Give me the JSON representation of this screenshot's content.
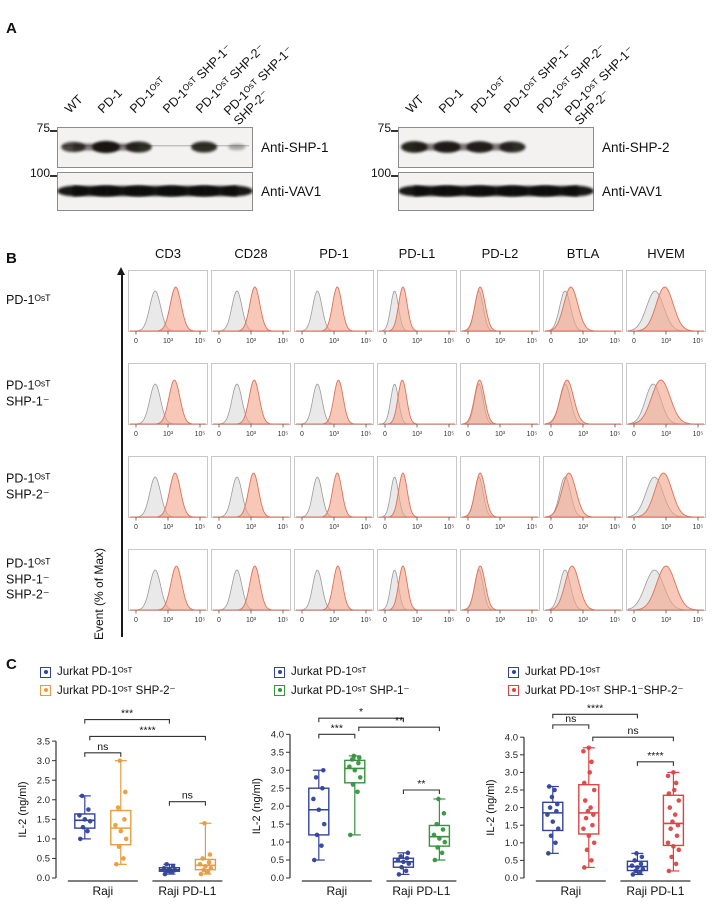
{
  "panelA": {
    "label": "A",
    "lane_labels": [
      "WT",
      "PD-1",
      "PD-1ᴼˢᵀ",
      "PD-1ᴼˢᵀ SHP-1⁻",
      "PD-1ᴼˢᵀ SHP-2⁻",
      "PD-1ᴼˢᵀ SHP-1⁻\nSHP-2⁻"
    ],
    "blots": [
      {
        "marker_top": "75",
        "marker_bottom": "100",
        "antibody_top": "Anti-SHP-1",
        "antibody_bottom": "Anti-VAV1",
        "smear": true,
        "bands_top": [
          0.7,
          1.0,
          0.85,
          0,
          0.85,
          0.1
        ],
        "bands_bottom": [
          1,
          1,
          1,
          1,
          1,
          1
        ]
      },
      {
        "marker_top": "75",
        "marker_bottom": "100",
        "antibody_top": "Anti-SHP-2",
        "antibody_bottom": "Anti-VAV1",
        "smear": false,
        "bands_top": [
          0.9,
          0.92,
          0.9,
          0.85,
          0,
          0
        ],
        "bands_bottom": [
          1,
          1,
          1,
          1,
          1,
          1
        ]
      }
    ]
  },
  "panelB": {
    "label": "B",
    "y_axis_label": "Event (% of Max)",
    "x_ticks": [
      "0",
      "10³",
      "10⁵"
    ],
    "columns": [
      "CD3",
      "CD28",
      "PD-1",
      "PD-L1",
      "PD-L2",
      "BTLA",
      "HVEM"
    ],
    "rows": [
      "PD-1ᴼˢᵀ",
      "PD-1ᴼˢᵀ\nSHP-1⁻",
      "PD-1ᴼˢᵀ\nSHP-2⁻",
      "PD-1ᴼˢᵀ\nSHP-1⁻\nSHP-2⁻"
    ],
    "colors": {
      "control_fill": "#e4e4e4",
      "control_stroke": "#9b9b9b",
      "sample_fill": "#f2a189",
      "sample_stroke": "#dd7257"
    },
    "cells": [
      [
        {
          "g": [
            0.3,
            0.07
          ],
          "r": [
            0.62,
            0.07
          ]
        },
        {
          "g": [
            0.28,
            0.065
          ],
          "r": [
            0.56,
            0.065
          ]
        },
        {
          "g": [
            0.24,
            0.06
          ],
          "r": [
            0.55,
            0.06
          ]
        },
        {
          "g": [
            0.15,
            0.05
          ],
          "r": [
            0.28,
            0.055
          ]
        },
        {
          "g": [
            0.17,
            0.055
          ],
          "r": [
            0.19,
            0.065
          ]
        },
        {
          "g": [
            0.22,
            0.07
          ],
          "r": [
            0.31,
            0.09
          ]
        },
        {
          "g": [
            0.33,
            0.11
          ],
          "r": [
            0.48,
            0.11
          ]
        }
      ],
      [
        {
          "g": [
            0.3,
            0.07
          ],
          "r": [
            0.6,
            0.07
          ]
        },
        {
          "g": [
            0.28,
            0.065
          ],
          "r": [
            0.55,
            0.065
          ]
        },
        {
          "g": [
            0.24,
            0.06
          ],
          "r": [
            0.57,
            0.06
          ]
        },
        {
          "g": [
            0.15,
            0.05
          ],
          "r": [
            0.27,
            0.055
          ]
        },
        {
          "g": [
            0.17,
            0.055
          ],
          "r": [
            0.18,
            0.065
          ]
        },
        {
          "g": [
            0.22,
            0.07
          ],
          "r": [
            0.25,
            0.085
          ]
        },
        {
          "g": [
            0.3,
            0.1
          ],
          "r": [
            0.42,
            0.12
          ]
        }
      ],
      [
        {
          "g": [
            0.3,
            0.07
          ],
          "r": [
            0.61,
            0.07
          ]
        },
        {
          "g": [
            0.28,
            0.065
          ],
          "r": [
            0.54,
            0.065
          ]
        },
        {
          "g": [
            0.24,
            0.06
          ],
          "r": [
            0.55,
            0.06
          ]
        },
        {
          "g": [
            0.15,
            0.05
          ],
          "r": [
            0.28,
            0.055
          ]
        },
        {
          "g": [
            0.17,
            0.055
          ],
          "r": [
            0.19,
            0.065
          ]
        },
        {
          "g": [
            0.22,
            0.07
          ],
          "r": [
            0.28,
            0.09
          ]
        },
        {
          "g": [
            0.32,
            0.11
          ],
          "r": [
            0.46,
            0.11
          ]
        }
      ],
      [
        {
          "g": [
            0.3,
            0.07
          ],
          "r": [
            0.63,
            0.07
          ]
        },
        {
          "g": [
            0.28,
            0.065
          ],
          "r": [
            0.56,
            0.065
          ]
        },
        {
          "g": [
            0.24,
            0.06
          ],
          "r": [
            0.56,
            0.06
          ]
        },
        {
          "g": [
            0.15,
            0.05
          ],
          "r": [
            0.28,
            0.055
          ]
        },
        {
          "g": [
            0.17,
            0.055
          ],
          "r": [
            0.19,
            0.065
          ]
        },
        {
          "g": [
            0.22,
            0.07
          ],
          "r": [
            0.33,
            0.09
          ]
        },
        {
          "g": [
            0.32,
            0.12
          ],
          "r": [
            0.5,
            0.12
          ]
        }
      ]
    ]
  },
  "panelC": {
    "label": "C"
  },
  "chart_data": [
    {
      "type": "box",
      "legend": [
        {
          "label": "Jurkat PD-1ᴼˢᵀ",
          "color": "#33439c"
        },
        {
          "label": "Jurkat PD-1ᴼˢᵀ SHP-2⁻",
          "color": "#e89c3e"
        }
      ],
      "ylabel": "IL-2 (ng/ml)",
      "ylim": [
        0,
        3.5
      ],
      "ytick_step": 0.5,
      "yhead": 4.5,
      "groups": [
        "Raji",
        "Raji PD-L1"
      ],
      "boxes": [
        {
          "group": 0,
          "series": 0,
          "points": [
            1.0,
            1.2,
            1.3,
            1.45,
            1.5,
            1.6,
            1.75,
            2.1
          ]
        },
        {
          "group": 0,
          "series": 1,
          "points": [
            0.35,
            0.5,
            0.8,
            1.0,
            1.2,
            1.35,
            1.5,
            1.8,
            2.2,
            3.0
          ]
        },
        {
          "group": 1,
          "series": 0,
          "points": [
            0.1,
            0.15,
            0.18,
            0.2,
            0.22,
            0.25,
            0.3,
            0.35
          ]
        },
        {
          "group": 1,
          "series": 1,
          "points": [
            0.1,
            0.15,
            0.2,
            0.25,
            0.3,
            0.35,
            0.4,
            0.5,
            0.6,
            1.4
          ]
        }
      ],
      "significance": [
        {
          "from": 0,
          "to": 1,
          "y": 3.2,
          "label": "ns"
        },
        {
          "from": 0,
          "to": 2,
          "y": 4.05,
          "label": "***"
        },
        {
          "from": 0,
          "to": 3,
          "y": 3.62,
          "label": "****",
          "dx1": 5
        },
        {
          "from": 2,
          "to": 3,
          "y": 1.95,
          "label": "ns"
        }
      ]
    },
    {
      "type": "box",
      "legend": [
        {
          "label": "Jurkat PD-1ᴼˢᵀ",
          "color": "#33439c"
        },
        {
          "label": "Jurkat PD-1ᴼˢᵀ SHP-1⁻",
          "color": "#36953e"
        }
      ],
      "ylabel": "IL-2 (ng/ml)",
      "ylim": [
        0,
        4.0
      ],
      "ytick_step": 0.5,
      "yhead": 4.9,
      "groups": [
        "Raji",
        "Raji PD-L1"
      ],
      "boxes": [
        {
          "group": 0,
          "series": 0,
          "points": [
            0.5,
            0.9,
            1.2,
            1.5,
            1.9,
            2.2,
            2.5,
            2.8,
            3.0
          ]
        },
        {
          "group": 0,
          "series": 1,
          "points": [
            1.2,
            2.4,
            2.6,
            2.8,
            3.0,
            3.1,
            3.2,
            3.3,
            3.35,
            3.4
          ]
        },
        {
          "group": 1,
          "series": 0,
          "points": [
            0.1,
            0.2,
            0.3,
            0.4,
            0.45,
            0.5,
            0.55,
            0.6,
            0.7
          ]
        },
        {
          "group": 1,
          "series": 1,
          "points": [
            0.5,
            0.7,
            0.85,
            1.0,
            1.1,
            1.2,
            1.35,
            1.5,
            1.8,
            2.2
          ]
        }
      ],
      "significance": [
        {
          "from": 0,
          "to": 1,
          "y": 4.0,
          "label": "***"
        },
        {
          "from": 0,
          "to": 2,
          "y": 4.45,
          "label": "*"
        },
        {
          "from": 1,
          "to": 3,
          "y": 4.2,
          "label": "**",
          "dx1": 4
        },
        {
          "from": 2,
          "to": 3,
          "y": 2.45,
          "label": "**"
        }
      ]
    },
    {
      "type": "box",
      "legend": [
        {
          "label": "Jurkat PD-1ᴼˢᵀ",
          "color": "#33439c"
        },
        {
          "label": "Jurkat PD-1ᴼˢᵀ SHP-1⁻SHP-2⁻",
          "color": "#dc4444"
        }
      ],
      "ylabel": "IL-2 (ng/ml)",
      "ylim": [
        0,
        4.0
      ],
      "ytick_step": 0.5,
      "yhead": 5.0,
      "groups": [
        "Raji",
        "Raji PD-L1"
      ],
      "boxes": [
        {
          "group": 0,
          "series": 0,
          "points": [
            0.7,
            1.0,
            1.2,
            1.4,
            1.6,
            1.8,
            1.9,
            2.0,
            2.1,
            2.3,
            2.5,
            2.6
          ]
        },
        {
          "group": 0,
          "series": 1,
          "points": [
            0.3,
            0.5,
            0.8,
            1.0,
            1.2,
            1.4,
            1.5,
            1.7,
            1.8,
            1.9,
            2.0,
            2.2,
            2.5,
            2.7,
            3.0,
            3.3,
            3.6,
            3.7
          ]
        },
        {
          "group": 1,
          "series": 0,
          "points": [
            0.1,
            0.15,
            0.2,
            0.25,
            0.3,
            0.35,
            0.4,
            0.5,
            0.6,
            0.7
          ]
        },
        {
          "group": 1,
          "series": 1,
          "points": [
            0.2,
            0.4,
            0.6,
            0.8,
            0.9,
            1.0,
            1.2,
            1.4,
            1.5,
            1.6,
            1.8,
            2.0,
            2.2,
            2.4,
            2.5,
            2.7,
            2.9,
            3.0
          ]
        }
      ],
      "significance": [
        {
          "from": 0,
          "to": 1,
          "y": 4.35,
          "label": "ns"
        },
        {
          "from": 0,
          "to": 2,
          "y": 4.65,
          "label": "****"
        },
        {
          "from": 1,
          "to": 3,
          "y": 4.0,
          "label": "ns",
          "dx1": 4
        },
        {
          "from": 2,
          "to": 3,
          "y": 3.3,
          "label": "****"
        }
      ]
    }
  ]
}
